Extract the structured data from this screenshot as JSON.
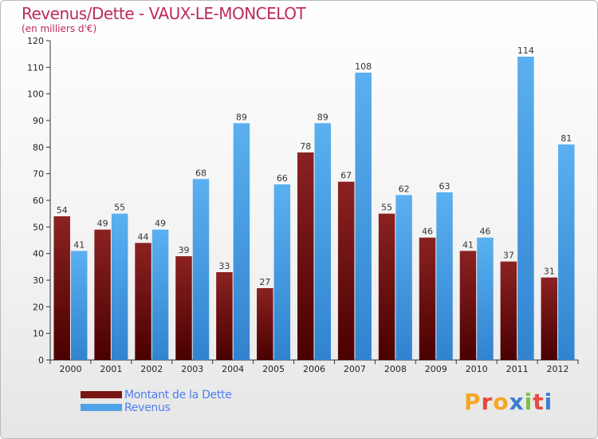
{
  "header": {
    "title": "Revenus/Dette - VAUX-LE-MONCELOT",
    "subtitle": "(en milliers d'€)"
  },
  "logo": {
    "letters": [
      "P",
      "r",
      "o",
      "x",
      "i",
      "t",
      "i"
    ],
    "colors": [
      "#f5a623",
      "#e84b3c",
      "#f5a623",
      "#3a7fd5",
      "#7ac143",
      "#e84b3c",
      "#3a7fd5"
    ]
  },
  "colors": {
    "dette": "#7a1515",
    "revenus": "#4fa3e6"
  },
  "chart_data": {
    "type": "bar",
    "title": "Revenus/Dette - VAUX-LE-MONCELOT",
    "subtitle": "(en milliers d'€)",
    "categories": [
      "2000",
      "2001",
      "2002",
      "2003",
      "2004",
      "2005",
      "2006",
      "2007",
      "2008",
      "2009",
      "2010",
      "2011",
      "2012"
    ],
    "series": [
      {
        "name": "Montant de la Dette",
        "values": [
          54,
          49,
          44,
          39,
          33,
          27,
          78,
          67,
          55,
          46,
          41,
          37,
          31
        ]
      },
      {
        "name": "Revenus",
        "values": [
          41,
          55,
          49,
          68,
          89,
          66,
          89,
          108,
          62,
          63,
          46,
          114,
          81
        ]
      }
    ],
    "yticks": [
      0,
      10,
      20,
      30,
      40,
      50,
      60,
      70,
      80,
      90,
      100,
      110,
      120
    ],
    "ylim": [
      0,
      120
    ],
    "grid": false,
    "legend": "bottom-left"
  }
}
